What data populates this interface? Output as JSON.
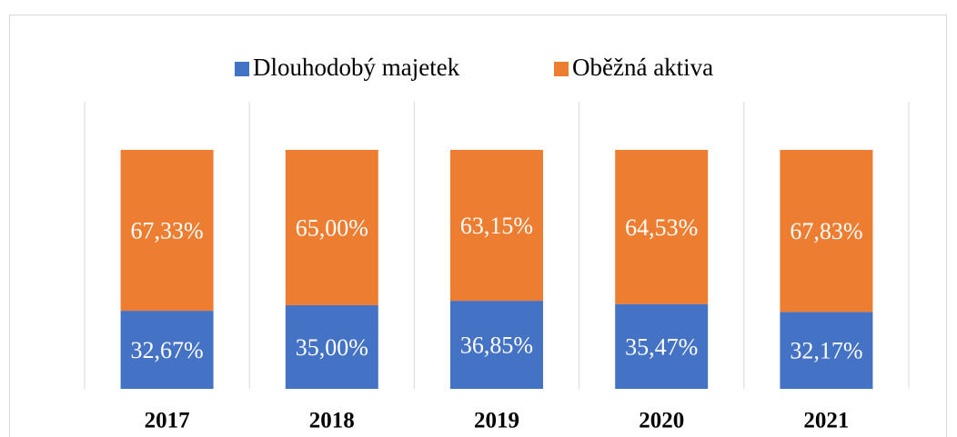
{
  "chart_data": {
    "type": "bar",
    "stacked": true,
    "categories": [
      "2017",
      "2018",
      "2019",
      "2020",
      "2021"
    ],
    "series": [
      {
        "name": "Dlouhodobý majetek",
        "color": "#4472c4",
        "values": [
          32.67,
          35.0,
          36.85,
          35.47,
          32.17
        ],
        "value_labels": [
          "32,67%",
          "35,00%",
          "36,85%",
          "35,47%",
          "32,17%"
        ]
      },
      {
        "name": "Oběžná aktiva",
        "color": "#ed7d31",
        "values": [
          67.33,
          65.0,
          63.15,
          64.53,
          67.83
        ],
        "value_labels": [
          "67,33%",
          "65,00%",
          "63,15%",
          "64,53%",
          "67,83%"
        ]
      }
    ],
    "ylim": [
      0,
      100
    ],
    "legend": "top",
    "grid": false
  }
}
